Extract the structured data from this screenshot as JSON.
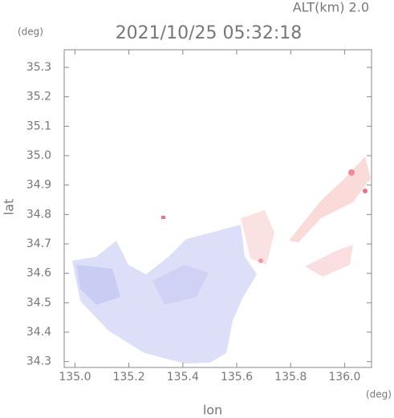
{
  "chart_data": {
    "type": "map",
    "title": "2021/10/25 05:32:18",
    "subtitle": "ALT(km) 2.0",
    "y_unit": "(deg)",
    "x_unit": "(deg)",
    "ylabel": "lat",
    "xlabel": "lon",
    "xlim": [
      134.96,
      136.1
    ],
    "ylim": [
      34.28,
      35.36
    ],
    "xticks": [
      {
        "value": 135.0,
        "label": "135.0"
      },
      135.2,
      135.4,
      135.6,
      135.8,
      {
        "value": 136.0,
        "label": "136.0"
      }
    ],
    "yticks": [
      34.3,
      34.4,
      34.5,
      34.6,
      34.7,
      34.8,
      34.9,
      {
        "value": 35.0,
        "label": "35.0"
      },
      35.1,
      35.2,
      35.3
    ]
  }
}
